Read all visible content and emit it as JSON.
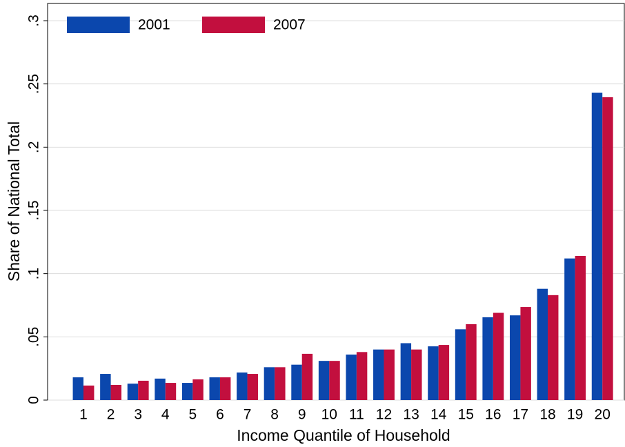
{
  "chart_data": {
    "type": "bar",
    "x_label": "Income Quantile of Household",
    "y_label": "Share of National Total",
    "categories": [
      1,
      2,
      3,
      4,
      5,
      6,
      7,
      8,
      9,
      10,
      11,
      12,
      13,
      14,
      15,
      16,
      17,
      18,
      19,
      20
    ],
    "series": [
      {
        "name": "2001",
        "color": "#0b47ad",
        "values": [
          0.018,
          0.0207,
          0.013,
          0.017,
          0.0136,
          0.018,
          0.0218,
          0.026,
          0.028,
          0.031,
          0.036,
          0.04,
          0.045,
          0.0425,
          0.056,
          0.0655,
          0.067,
          0.088,
          0.112,
          0.243
        ]
      },
      {
        "name": "2007",
        "color": "#c20f3e",
        "values": [
          0.0115,
          0.012,
          0.0153,
          0.0136,
          0.0164,
          0.018,
          0.0207,
          0.026,
          0.0366,
          0.031,
          0.038,
          0.04,
          0.04,
          0.0436,
          0.06,
          0.069,
          0.0736,
          0.083,
          0.114,
          0.2395
        ]
      }
    ],
    "ylim": [
      0,
      0.3
    ],
    "yticks": [
      0,
      {
        "value": 0.05,
        "label": ".05"
      },
      {
        "value": 0.1,
        "label": ".1"
      },
      {
        "value": 0.15,
        "label": ".15"
      },
      {
        "value": 0.2,
        "label": ".2"
      },
      {
        "value": 0.25,
        "label": ".25"
      },
      {
        "value": 0.3,
        "label": ".3"
      }
    ],
    "grid": true,
    "legend": "top-left"
  }
}
